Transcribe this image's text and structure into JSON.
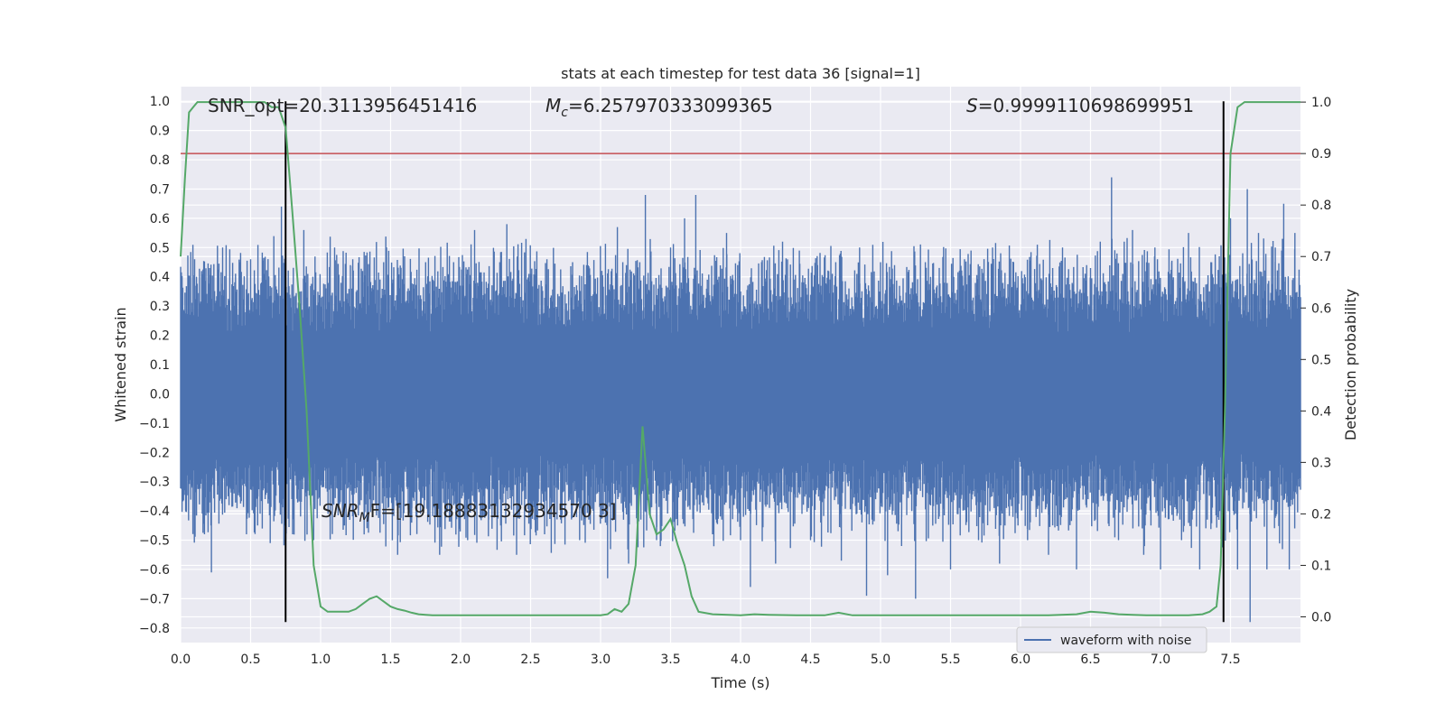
{
  "chart_data": {
    "type": "line",
    "title": "stats at each timestep for test data 36 [signal=1]",
    "xlabel": "Time (s)",
    "ylabel": "Whitened strain",
    "y2label": "Detection probability",
    "xlim": [
      0,
      8
    ],
    "ylim": [
      -0.85,
      1.05
    ],
    "y2lim": [
      -0.05,
      1.03
    ],
    "xticks": [
      0.0,
      0.5,
      1.0,
      1.5,
      2.0,
      2.5,
      3.0,
      3.5,
      4.0,
      4.5,
      5.0,
      5.5,
      6.0,
      6.5,
      7.0,
      7.5
    ],
    "xtick_labels": [
      "0.0",
      "0.5",
      "1.0",
      "1.5",
      "2.0",
      "2.5",
      "3.0",
      "3.5",
      "4.0",
      "4.5",
      "5.0",
      "5.5",
      "6.0",
      "6.5",
      "7.0",
      "7.5"
    ],
    "yticks": [
      1.0,
      0.9,
      0.8,
      0.7,
      0.6,
      0.5,
      0.4,
      0.3,
      0.2,
      0.1,
      0.0,
      -0.1,
      -0.2,
      -0.3,
      -0.4,
      -0.5,
      -0.6,
      -0.7,
      -0.8
    ],
    "ytick_labels": [
      "1.0",
      "0.9",
      "0.8",
      "0.7",
      "0.6",
      "0.5",
      "0.4",
      "0.3",
      "0.2",
      "0.1",
      "0.0",
      "−0.1",
      "−0.2",
      "−0.3",
      "−0.4",
      "−0.5",
      "−0.6",
      "−0.7",
      "−0.8"
    ],
    "y2ticks": [
      1.0,
      0.9,
      0.8,
      0.7,
      0.6,
      0.5,
      0.4,
      0.3,
      0.2,
      0.1,
      0.0
    ],
    "y2tick_labels": [
      "1.0",
      "0.9",
      "0.8",
      "0.7",
      "0.6",
      "0.5",
      "0.4",
      "0.3",
      "0.2",
      "0.1",
      "0.0"
    ],
    "grid": true,
    "legend": {
      "position": "bottom-right",
      "entries": [
        "waveform with noise"
      ]
    },
    "annotations": {
      "snr_opt": "SNR_opt=20.3113956451416",
      "mc_symbol": "M",
      "mc_sub": "c",
      "mc_value": "=6.257970333099365",
      "s_symbol": "S",
      "s_value": "=0.9999110698699951",
      "snr_mf_symbol": "SNR",
      "snr_mf_sub": "M",
      "snr_mf_value": "F=[19.18883132934570 3]"
    },
    "threshold_line": {
      "y2": 0.9,
      "color": "#c44e52"
    },
    "vertical_lines": [
      0.75,
      7.45
    ],
    "vertical_line_range": [
      -0.78,
      1.0
    ],
    "waveform": {
      "name": "waveform with noise",
      "color": "#4c72b0",
      "x_range": [
        0.0,
        8.0
      ],
      "core_amplitude": 0.3,
      "spikes": [
        [
          0.1,
          0.46
        ],
        [
          0.12,
          -0.31
        ],
        [
          0.18,
          0.36
        ],
        [
          0.22,
          -0.61
        ],
        [
          0.3,
          0.5
        ],
        [
          0.34,
          -0.35
        ],
        [
          0.42,
          0.45
        ],
        [
          0.47,
          -0.48
        ],
        [
          0.5,
          0.46
        ],
        [
          0.55,
          -0.45
        ],
        [
          0.6,
          0.41
        ],
        [
          0.64,
          -0.51
        ],
        [
          0.72,
          0.64
        ],
        [
          0.8,
          -0.48
        ],
        [
          0.88,
          0.56
        ],
        [
          0.95,
          -0.5
        ],
        [
          1.1,
          0.5
        ],
        [
          1.17,
          -0.45
        ],
        [
          1.23,
          0.46
        ],
        [
          1.28,
          -0.38
        ],
        [
          1.3,
          0.42
        ],
        [
          1.45,
          0.45
        ],
        [
          1.55,
          -0.55
        ],
        [
          1.6,
          0.47
        ],
        [
          1.65,
          -0.44
        ],
        [
          1.75,
          0.45
        ],
        [
          1.85,
          -0.55
        ],
        [
          1.95,
          0.45
        ],
        [
          2.05,
          -0.5
        ],
        [
          2.1,
          0.56
        ],
        [
          2.2,
          -0.43
        ],
        [
          2.28,
          0.45
        ],
        [
          2.33,
          0.58
        ],
        [
          2.4,
          -0.55
        ],
        [
          2.5,
          0.41
        ],
        [
          2.6,
          -0.48
        ],
        [
          2.8,
          0.45
        ],
        [
          2.85,
          -0.5
        ],
        [
          2.9,
          0.44
        ],
        [
          3.05,
          -0.63
        ],
        [
          3.12,
          0.57
        ],
        [
          3.2,
          -0.58
        ],
        [
          3.28,
          0.45
        ],
        [
          3.32,
          0.68
        ],
        [
          3.4,
          -0.5
        ],
        [
          3.5,
          0.5
        ],
        [
          3.55,
          -0.45
        ],
        [
          3.6,
          0.6
        ],
        [
          3.68,
          0.68
        ],
        [
          3.8,
          -0.48
        ],
        [
          3.9,
          0.55
        ],
        [
          4.0,
          -0.5
        ],
        [
          4.07,
          -0.66
        ],
        [
          4.15,
          0.45
        ],
        [
          4.25,
          -0.58
        ],
        [
          4.3,
          0.52
        ],
        [
          4.42,
          0.49
        ],
        [
          4.5,
          -0.5
        ],
        [
          4.55,
          0.44
        ],
        [
          4.68,
          0.45
        ],
        [
          4.72,
          -0.57
        ],
        [
          4.85,
          0.5
        ],
        [
          4.9,
          -0.69
        ],
        [
          5.0,
          0.45
        ],
        [
          5.05,
          -0.62
        ],
        [
          5.1,
          0.44
        ],
        [
          5.15,
          -0.52
        ],
        [
          5.25,
          -0.7
        ],
        [
          5.32,
          0.45
        ],
        [
          5.5,
          -0.6
        ],
        [
          5.6,
          0.46
        ],
        [
          5.7,
          -0.5
        ],
        [
          5.8,
          0.5
        ],
        [
          5.85,
          -0.58
        ],
        [
          5.95,
          0.45
        ],
        [
          6.05,
          -0.5
        ],
        [
          6.12,
          0.51
        ],
        [
          6.2,
          -0.55
        ],
        [
          6.3,
          0.5
        ],
        [
          6.4,
          -0.6
        ],
        [
          6.5,
          0.43
        ],
        [
          6.57,
          0.52
        ],
        [
          6.65,
          0.74
        ],
        [
          6.7,
          -0.5
        ],
        [
          6.8,
          0.56
        ],
        [
          6.88,
          -0.55
        ],
        [
          6.96,
          0.5
        ],
        [
          7.0,
          -0.6
        ],
        [
          7.08,
          0.45
        ],
        [
          7.15,
          -0.5
        ],
        [
          7.2,
          0.55
        ],
        [
          7.28,
          -0.6
        ],
        [
          7.36,
          0.45
        ],
        [
          7.42,
          0.47
        ],
        [
          7.5,
          0.6
        ],
        [
          7.55,
          -0.6
        ],
        [
          7.62,
          0.7
        ],
        [
          7.64,
          -0.78
        ],
        [
          7.7,
          0.55
        ],
        [
          7.76,
          -0.6
        ],
        [
          7.82,
          0.5
        ],
        [
          7.88,
          0.65
        ],
        [
          7.92,
          -0.6
        ],
        [
          7.96,
          0.55
        ]
      ]
    },
    "probability": {
      "color": "#55a868",
      "x": [
        0.0,
        0.03,
        0.06,
        0.09,
        0.12,
        0.2,
        0.3,
        0.4,
        0.5,
        0.6,
        0.65,
        0.7,
        0.75,
        0.8,
        0.85,
        0.9,
        0.95,
        1.0,
        1.05,
        1.1,
        1.2,
        1.25,
        1.3,
        1.35,
        1.4,
        1.45,
        1.5,
        1.55,
        1.6,
        1.65,
        1.7,
        1.75,
        1.8,
        2.0,
        2.2,
        2.4,
        2.6,
        2.8,
        3.0,
        3.05,
        3.1,
        3.15,
        3.2,
        3.25,
        3.3,
        3.35,
        3.4,
        3.45,
        3.5,
        3.55,
        3.6,
        3.65,
        3.7,
        3.8,
        4.0,
        4.1,
        4.2,
        4.4,
        4.6,
        4.7,
        4.8,
        5.0,
        5.2,
        5.4,
        5.6,
        5.8,
        6.0,
        6.2,
        6.4,
        6.5,
        6.6,
        6.7,
        6.8,
        6.9,
        7.0,
        7.2,
        7.3,
        7.35,
        7.4,
        7.43,
        7.46,
        7.5,
        7.55,
        7.6,
        7.65,
        7.7,
        7.8,
        8.0
      ],
      "values": [
        0.7,
        0.85,
        0.98,
        0.99,
        1.0,
        1.0,
        1.0,
        1.0,
        1.0,
        1.0,
        0.99,
        0.99,
        0.95,
        0.78,
        0.6,
        0.4,
        0.1,
        0.02,
        0.01,
        0.01,
        0.01,
        0.015,
        0.025,
        0.035,
        0.04,
        0.03,
        0.02,
        0.015,
        0.012,
        0.008,
        0.005,
        0.004,
        0.003,
        0.003,
        0.003,
        0.003,
        0.003,
        0.003,
        0.003,
        0.005,
        0.015,
        0.01,
        0.025,
        0.1,
        0.37,
        0.2,
        0.16,
        0.17,
        0.19,
        0.14,
        0.1,
        0.04,
        0.01,
        0.005,
        0.003,
        0.005,
        0.004,
        0.003,
        0.003,
        0.008,
        0.003,
        0.003,
        0.003,
        0.003,
        0.003,
        0.003,
        0.003,
        0.003,
        0.005,
        0.01,
        0.008,
        0.005,
        0.004,
        0.003,
        0.003,
        0.003,
        0.005,
        0.01,
        0.02,
        0.1,
        0.4,
        0.9,
        0.99,
        1.0,
        1.0,
        1.0,
        1.0,
        1.0
      ]
    }
  }
}
